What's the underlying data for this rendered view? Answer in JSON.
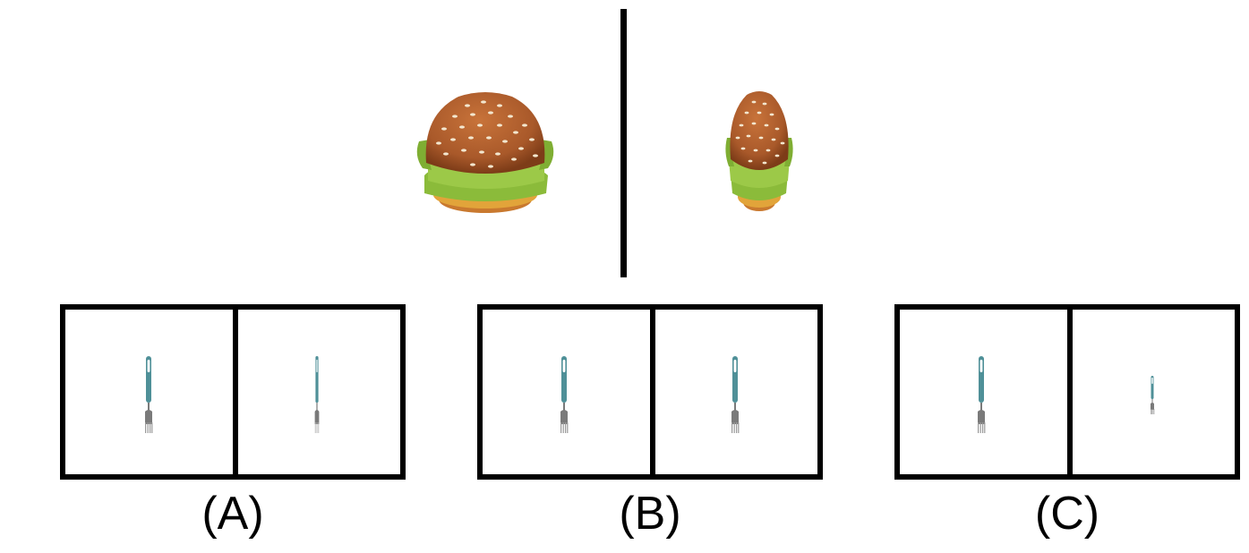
{
  "reference": {
    "left_icon": "hamburger-icon",
    "right_icon": "hamburger-narrow-icon"
  },
  "options": [
    {
      "label": "(A)",
      "left_icon": "fork-icon",
      "right_icon": "fork-narrow-icon"
    },
    {
      "label": "(B)",
      "left_icon": "fork-icon",
      "right_icon": "fork-icon"
    },
    {
      "label": "(C)",
      "left_icon": "fork-icon",
      "right_icon": "fork-small-icon"
    }
  ],
  "colors": {
    "bun": "#b5612c",
    "bun_dark": "#8a431c",
    "sesame": "#f3e7cf",
    "lettuce": "#8bbb3a",
    "cheese": "#e2a43a",
    "fork_handle": "#4f9098",
    "fork_metal": "#7a7a7a",
    "border": "#000000"
  }
}
